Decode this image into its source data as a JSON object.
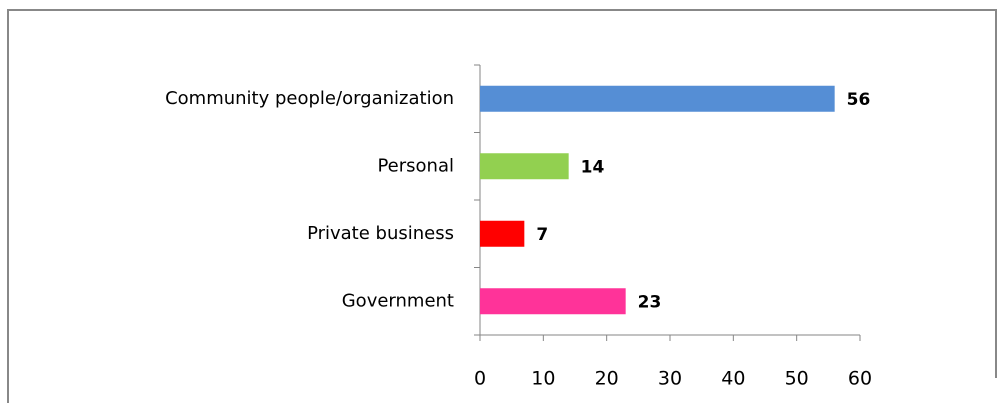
{
  "chart_data": {
    "type": "bar",
    "orientation": "horizontal",
    "categories": [
      "Community people/organization",
      "Personal",
      "Private business",
      "Government"
    ],
    "values": [
      56,
      14,
      7,
      23
    ],
    "colors": [
      "#558ed5",
      "#92d050",
      "#ff0000",
      "#ff3399"
    ],
    "xlim": [
      0,
      60
    ],
    "xticks": [
      0,
      10,
      20,
      30,
      40,
      50,
      60
    ],
    "grid": false
  }
}
